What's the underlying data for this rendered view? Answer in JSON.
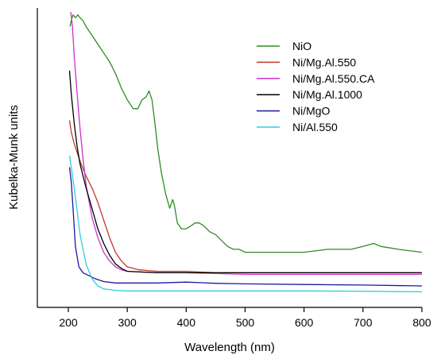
{
  "chart_data": {
    "type": "line",
    "xlabel": "Wavelength (nm)",
    "ylabel": "Kubelka-Munk units",
    "xlim": [
      150,
      800
    ],
    "ylim": [
      0,
      1
    ],
    "x_ticks": [
      200,
      300,
      400,
      500,
      600,
      700,
      800
    ],
    "y_ticks_shown": false,
    "grid": false,
    "legend_position": "top-right",
    "series": [
      {
        "name": "NiO",
        "color": "#2e8b22",
        "points": [
          [
            203,
            0.95
          ],
          [
            205,
            0.97
          ],
          [
            208,
            0.99
          ],
          [
            212,
            0.98
          ],
          [
            216,
            0.99
          ],
          [
            220,
            0.98
          ],
          [
            225,
            0.97
          ],
          [
            230,
            0.95
          ],
          [
            240,
            0.92
          ],
          [
            250,
            0.89
          ],
          [
            260,
            0.86
          ],
          [
            270,
            0.83
          ],
          [
            280,
            0.79
          ],
          [
            290,
            0.74
          ],
          [
            300,
            0.7
          ],
          [
            310,
            0.67
          ],
          [
            318,
            0.67
          ],
          [
            325,
            0.7
          ],
          [
            332,
            0.71
          ],
          [
            337,
            0.73
          ],
          [
            342,
            0.7
          ],
          [
            347,
            0.62
          ],
          [
            352,
            0.53
          ],
          [
            358,
            0.45
          ],
          [
            365,
            0.38
          ],
          [
            372,
            0.33
          ],
          [
            377,
            0.36
          ],
          [
            380,
            0.34
          ],
          [
            385,
            0.28
          ],
          [
            392,
            0.26
          ],
          [
            400,
            0.26
          ],
          [
            408,
            0.27
          ],
          [
            415,
            0.28
          ],
          [
            422,
            0.28
          ],
          [
            430,
            0.27
          ],
          [
            440,
            0.25
          ],
          [
            450,
            0.24
          ],
          [
            460,
            0.22
          ],
          [
            470,
            0.2
          ],
          [
            480,
            0.19
          ],
          [
            490,
            0.19
          ],
          [
            500,
            0.18
          ],
          [
            520,
            0.18
          ],
          [
            560,
            0.18
          ],
          [
            600,
            0.18
          ],
          [
            640,
            0.19
          ],
          [
            680,
            0.19
          ],
          [
            700,
            0.2
          ],
          [
            718,
            0.21
          ],
          [
            730,
            0.2
          ],
          [
            760,
            0.19
          ],
          [
            800,
            0.18
          ]
        ]
      },
      {
        "name": "Ni/Mg.Al.550",
        "color": "#c0392b",
        "points": [
          [
            202,
            0.63
          ],
          [
            205,
            0.59
          ],
          [
            210,
            0.55
          ],
          [
            215,
            0.52
          ],
          [
            220,
            0.49
          ],
          [
            230,
            0.44
          ],
          [
            240,
            0.4
          ],
          [
            250,
            0.35
          ],
          [
            260,
            0.29
          ],
          [
            270,
            0.23
          ],
          [
            280,
            0.18
          ],
          [
            290,
            0.15
          ],
          [
            300,
            0.13
          ],
          [
            320,
            0.12
          ],
          [
            350,
            0.115
          ],
          [
            400,
            0.115
          ],
          [
            450,
            0.11
          ],
          [
            500,
            0.11
          ],
          [
            600,
            0.11
          ],
          [
            700,
            0.11
          ],
          [
            800,
            0.11
          ]
        ]
      },
      {
        "name": "Ni/Mg.Al.550.CA",
        "color": "#cc33cc",
        "points": [
          [
            204,
            1.0
          ],
          [
            207,
            0.95
          ],
          [
            210,
            0.85
          ],
          [
            215,
            0.72
          ],
          [
            220,
            0.6
          ],
          [
            225,
            0.5
          ],
          [
            230,
            0.41
          ],
          [
            240,
            0.3
          ],
          [
            250,
            0.23
          ],
          [
            260,
            0.18
          ],
          [
            270,
            0.15
          ],
          [
            280,
            0.13
          ],
          [
            290,
            0.12
          ],
          [
            300,
            0.115
          ],
          [
            350,
            0.11
          ],
          [
            400,
            0.11
          ],
          [
            500,
            0.105
          ],
          [
            600,
            0.105
          ],
          [
            700,
            0.105
          ],
          [
            800,
            0.105
          ]
        ]
      },
      {
        "name": "Ni/Mg.Al.1000",
        "color": "#000000",
        "points": [
          [
            202,
            0.8
          ],
          [
            205,
            0.72
          ],
          [
            210,
            0.62
          ],
          [
            215,
            0.54
          ],
          [
            220,
            0.48
          ],
          [
            230,
            0.4
          ],
          [
            240,
            0.33
          ],
          [
            250,
            0.26
          ],
          [
            260,
            0.21
          ],
          [
            270,
            0.17
          ],
          [
            280,
            0.14
          ],
          [
            290,
            0.125
          ],
          [
            300,
            0.115
          ],
          [
            350,
            0.11
          ],
          [
            400,
            0.11
          ],
          [
            500,
            0.11
          ],
          [
            600,
            0.11
          ],
          [
            700,
            0.11
          ],
          [
            800,
            0.11
          ]
        ]
      },
      {
        "name": "Ni/MgO",
        "color": "#1a1aa0",
        "points": [
          [
            202,
            0.47
          ],
          [
            205,
            0.42
          ],
          [
            208,
            0.33
          ],
          [
            212,
            0.2
          ],
          [
            218,
            0.13
          ],
          [
            225,
            0.11
          ],
          [
            235,
            0.1
          ],
          [
            245,
            0.09
          ],
          [
            260,
            0.08
          ],
          [
            280,
            0.075
          ],
          [
            300,
            0.075
          ],
          [
            350,
            0.075
          ],
          [
            400,
            0.078
          ],
          [
            450,
            0.074
          ],
          [
            500,
            0.072
          ],
          [
            600,
            0.07
          ],
          [
            700,
            0.068
          ],
          [
            800,
            0.065
          ]
        ]
      },
      {
        "name": "Ni/Al.550",
        "color": "#33ccdd",
        "points": [
          [
            202,
            0.51
          ],
          [
            205,
            0.47
          ],
          [
            210,
            0.4
          ],
          [
            215,
            0.32
          ],
          [
            220,
            0.24
          ],
          [
            230,
            0.14
          ],
          [
            240,
            0.09
          ],
          [
            250,
            0.065
          ],
          [
            260,
            0.055
          ],
          [
            280,
            0.05
          ],
          [
            300,
            0.048
          ],
          [
            400,
            0.048
          ],
          [
            500,
            0.048
          ],
          [
            600,
            0.048
          ],
          [
            700,
            0.047
          ],
          [
            800,
            0.045
          ]
        ]
      }
    ]
  }
}
